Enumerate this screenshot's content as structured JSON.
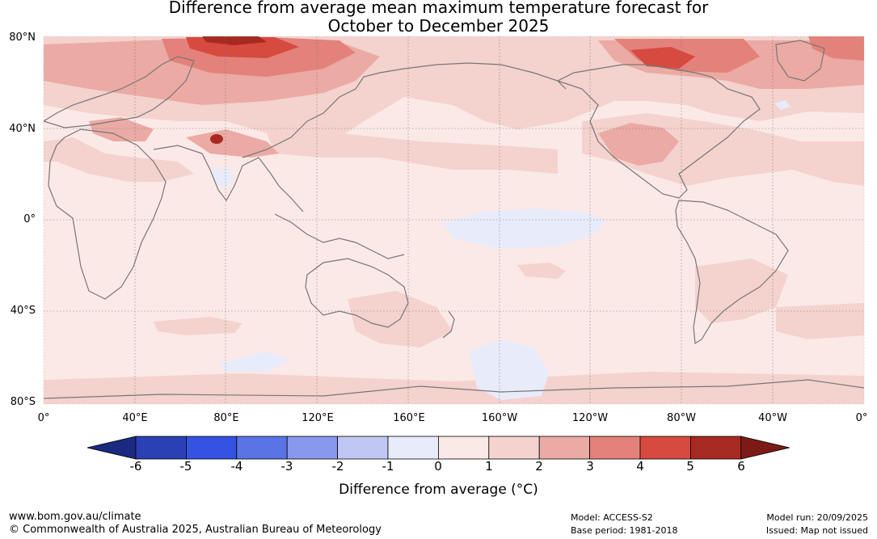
{
  "title": {
    "line1": "Difference from average mean maximum temperature forecast for",
    "line2": "October to December 2025"
  },
  "map": {
    "lat_labels": [
      "80°N",
      "40°N",
      "0°",
      "40°S",
      "80°S"
    ],
    "lon_labels": [
      "0°",
      "40°E",
      "80°E",
      "120°E",
      "160°E",
      "160°W",
      "120°W",
      "80°W",
      "40°W",
      "0°"
    ]
  },
  "colorbar": {
    "ticks": [
      "-6",
      "-5",
      "-4",
      "-3",
      "-2",
      "-1",
      "0",
      "1",
      "2",
      "3",
      "4",
      "5",
      "6"
    ],
    "colors": [
      "#1b2a80",
      "#2a40b5",
      "#3552e0",
      "#5a74e6",
      "#8898ec",
      "#c0c7f2",
      "#e8ebfa",
      "#fbe9e7",
      "#f4d2ce",
      "#ebaaa4",
      "#e3827a",
      "#d64a3f",
      "#a72a22",
      "#7c1b16"
    ],
    "label": "Difference from average (°C)"
  },
  "footer": {
    "website": "www.bom.gov.au/climate",
    "copyright": "© Commonwealth of Australia 2025, Australian Bureau of Meteorology",
    "model": "Model: ACCESS-S2",
    "base_period": "Base period: 1981-2018",
    "model_run": "Model run: 20/09/2025",
    "issued": "Issued: Map not issued"
  }
}
